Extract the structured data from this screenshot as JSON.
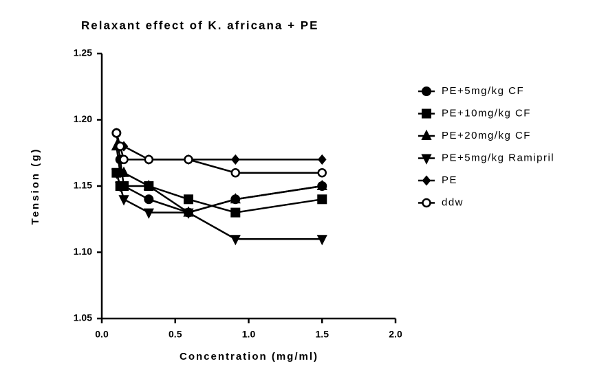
{
  "chart_data": {
    "type": "line",
    "title": "Relaxant effect of K. africana + PE",
    "x_label": "Concentration (mg/ml)",
    "y_label": "Tension (g)",
    "x": [
      0.1,
      0.125,
      0.15,
      0.32,
      0.59,
      0.91,
      1.5
    ],
    "series": [
      {
        "name": "PE+5mg/kg CF",
        "color": "#000000",
        "marker": "circle",
        "values": [
          1.19,
          1.17,
          1.15,
          1.14,
          1.13,
          1.14,
          1.15
        ]
      },
      {
        "name": "PE+10mg/kg CF",
        "color": "#000000",
        "marker": "square",
        "values": [
          1.16,
          1.15,
          1.15,
          1.15,
          1.14,
          1.13,
          1.14
        ]
      },
      {
        "name": "PE+20mg/kg CF",
        "color": "#000000",
        "marker": "triangle-up",
        "values": [
          1.18,
          1.16,
          1.16,
          1.15,
          1.13,
          1.14,
          1.15
        ]
      },
      {
        "name": "PE+5mg/kg Ramipril",
        "color": "#000000",
        "marker": "triangle-down",
        "values": [
          1.16,
          1.15,
          1.14,
          1.13,
          1.13,
          1.11,
          1.11
        ]
      },
      {
        "name": "PE",
        "color": "#000000",
        "marker": "diamond",
        "values": [
          1.19,
          1.18,
          1.18,
          1.17,
          1.17,
          1.17,
          1.17
        ]
      },
      {
        "name": "ddw",
        "color": "#000000",
        "marker": "open-circle",
        "values": [
          1.19,
          1.18,
          1.17,
          1.17,
          1.17,
          1.16,
          1.16
        ]
      }
    ],
    "xlim": [
      0,
      2
    ],
    "xticks": [
      {
        "value": 0,
        "label": "0.0"
      },
      0.5,
      {
        "value": 1,
        "label": "1.0"
      },
      1.5,
      {
        "value": 2,
        "label": "2.0"
      }
    ],
    "ylim": [
      1.05,
      1.25
    ],
    "yticks": [
      1.05,
      {
        "value": 1.1,
        "label": "1.10"
      },
      1.15,
      {
        "value": 1.2,
        "label": "1.20"
      },
      1.25
    ],
    "grid": false,
    "legend": "right"
  }
}
